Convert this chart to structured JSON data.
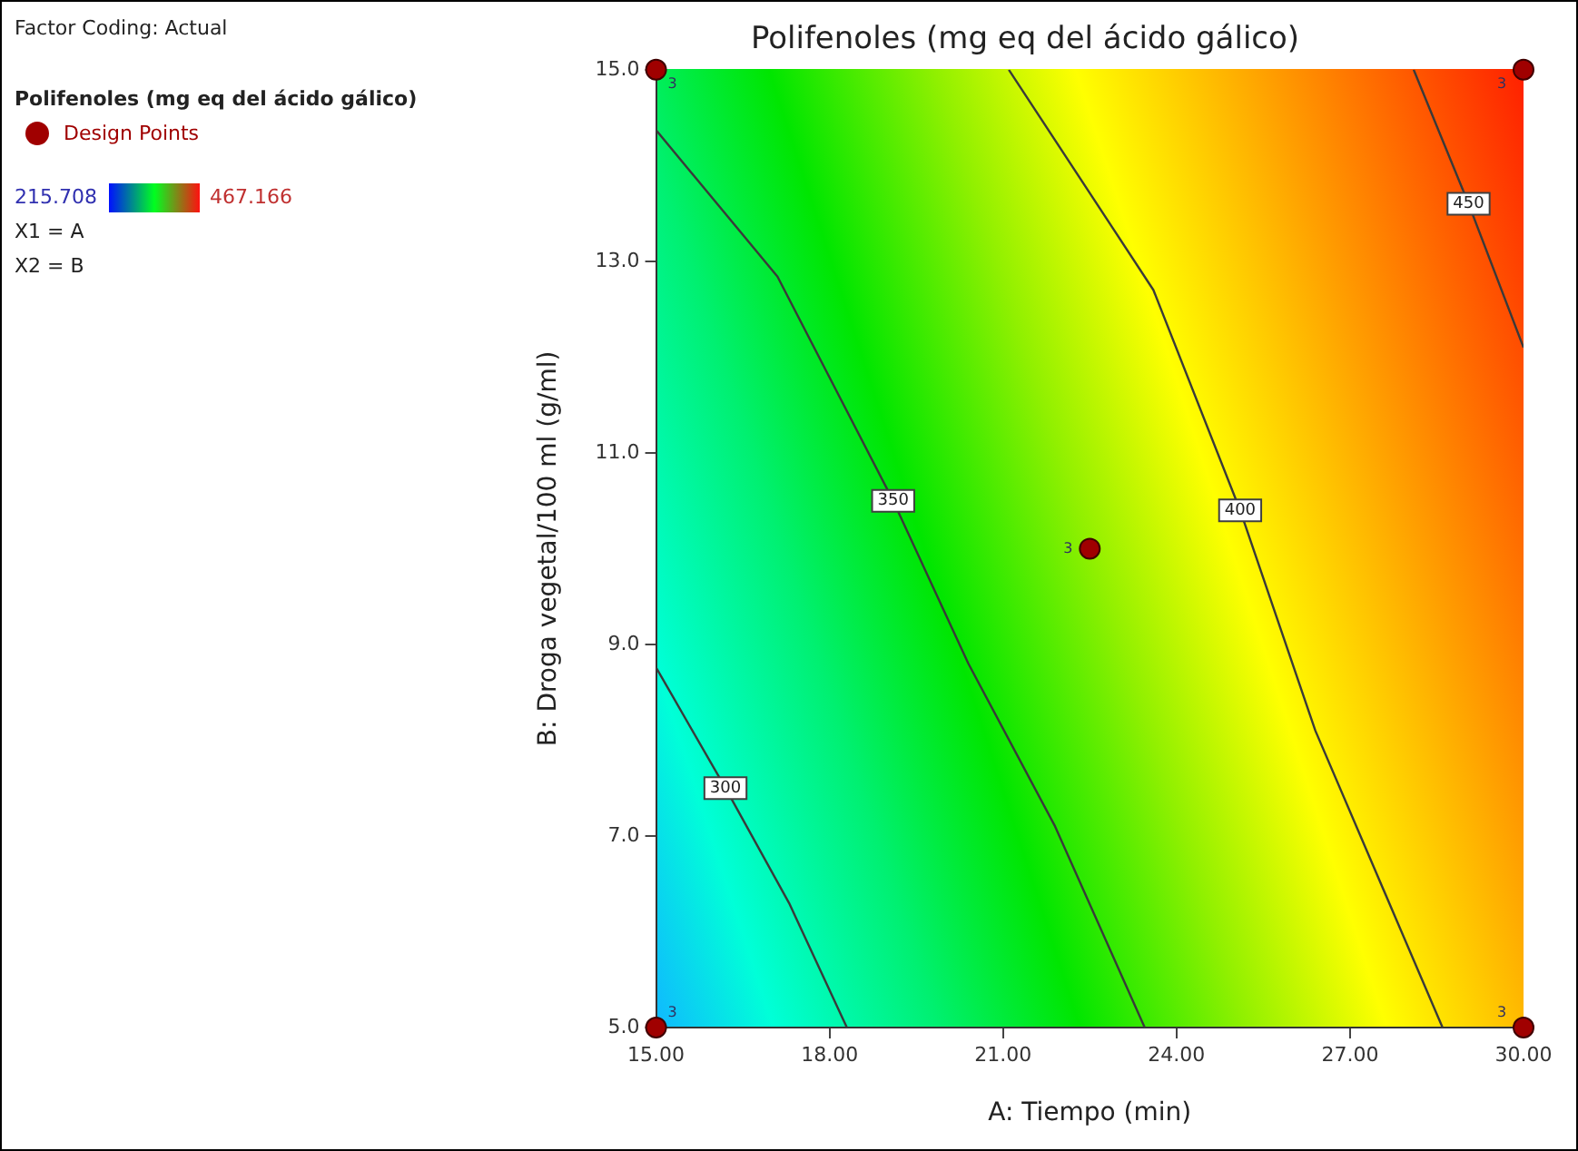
{
  "chart_data": {
    "type": "line",
    "title": "Polifenoles (mg eq del ácido gálico)",
    "xlabel": "A: Tiempo (min)",
    "ylabel": "B: Droga vegetal/100 ml (g/ml)",
    "legend_title": "Polifenoles (mg eq del ácido gálico)",
    "legend": "left",
    "grid": false,
    "xlim": [
      15,
      30
    ],
    "ylim": [
      5,
      15
    ],
    "xticks": [
      {
        "value": 15,
        "label": "15.00"
      },
      {
        "value": 18,
        "label": "18.00"
      },
      {
        "value": 21,
        "label": "21.00"
      },
      {
        "value": 24,
        "label": "24.00"
      },
      {
        "value": 27,
        "label": "27.00"
      },
      {
        "value": 30,
        "label": "30.00"
      }
    ],
    "yticks": [
      {
        "value": 5,
        "label": "5.0"
      },
      {
        "value": 7,
        "label": "7.0"
      },
      {
        "value": 9,
        "label": "9.0"
      },
      {
        "value": 11,
        "label": "11.0"
      },
      {
        "value": 13,
        "label": "13.0"
      },
      {
        "value": 15,
        "label": "15.0"
      }
    ],
    "series": [
      {
        "name": "300",
        "marker": "none",
        "color": "#3a3a3a",
        "x": [
          15,
          16.2,
          17.3,
          18.3
        ],
        "values": [
          8.76,
          7.5,
          6.3,
          5
        ]
      },
      {
        "name": "350",
        "marker": "none",
        "color": "#3a3a3a",
        "x": [
          15,
          17.1,
          19.1,
          20.4,
          21.9,
          23.45
        ],
        "values": [
          14.37,
          12.84,
          10.5,
          8.8,
          7.1,
          5
        ]
      },
      {
        "name": "400",
        "marker": "none",
        "color": "#3a3a3a",
        "x": [
          21.1,
          23.6,
          25.1,
          26.4,
          28.6
        ],
        "values": [
          15,
          12.7,
          10.4,
          8.1,
          5
        ]
      },
      {
        "name": "450",
        "marker": "none",
        "color": "#3a3a3a",
        "x": [
          28.1,
          29.05,
          30
        ],
        "values": [
          15,
          13.6,
          12.1
        ]
      },
      {
        "name": "Design Points",
        "type": "scatter",
        "marker": "circle",
        "color": "#a00000",
        "x": [
          15,
          15,
          30,
          30,
          22.5
        ],
        "values": [
          5,
          15,
          15,
          5,
          10
        ]
      }
    ],
    "annotations": [
      "Factor Coding: Actual",
      "215.708",
      "467.166",
      "X1 = A",
      "X2 = B",
      {
        "text": "3",
        "x": 15,
        "y": 5
      },
      {
        "text": "3",
        "x": 15,
        "y": 15
      },
      {
        "text": "3",
        "x": 30,
        "y": 15
      },
      {
        "text": "3",
        "x": 30,
        "y": 5
      },
      {
        "text": "3",
        "x": 22.5,
        "y": 10
      }
    ]
  }
}
